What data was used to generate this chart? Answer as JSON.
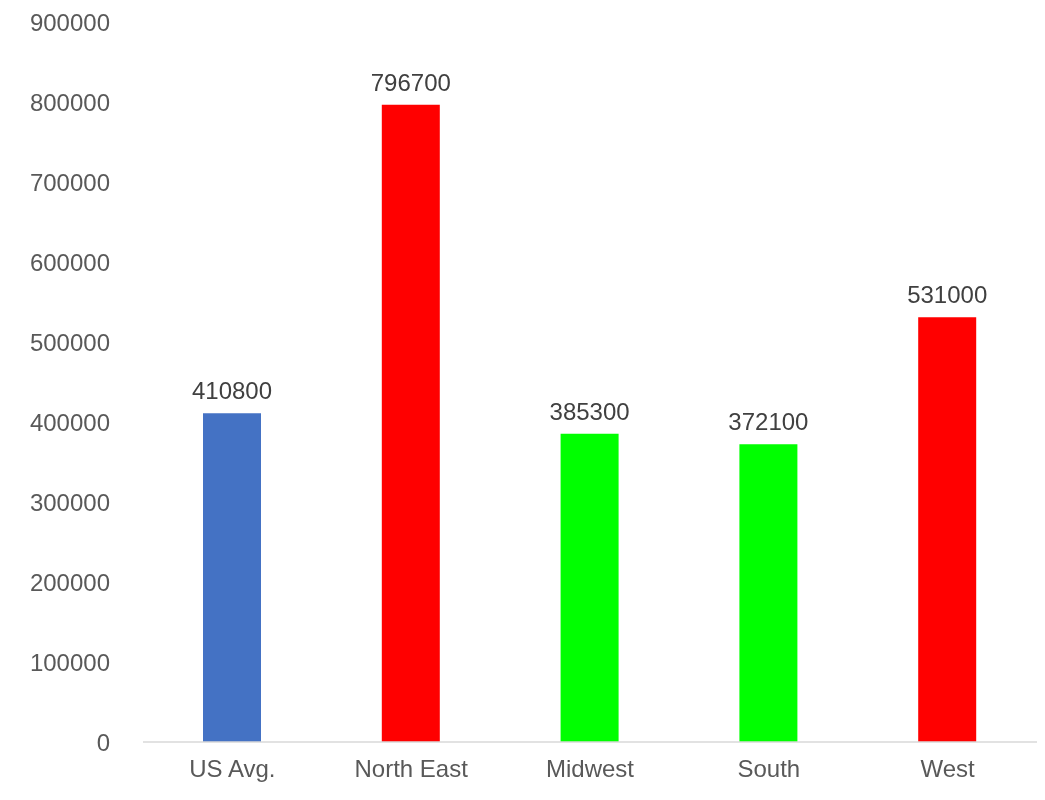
{
  "chart_data": {
    "type": "bar",
    "categories": [
      "US Avg.",
      "North East",
      "Midwest",
      "South",
      "West"
    ],
    "values": [
      410800,
      796700,
      385300,
      372100,
      531000
    ],
    "colors": [
      "#4472c4",
      "#ff0000",
      "#00ff00",
      "#00ff00",
      "#ff0000"
    ],
    "ylim": [
      0,
      900000
    ],
    "yticks": [
      0,
      100000,
      200000,
      300000,
      400000,
      500000,
      600000,
      700000,
      800000,
      900000
    ],
    "data_labels": true
  }
}
